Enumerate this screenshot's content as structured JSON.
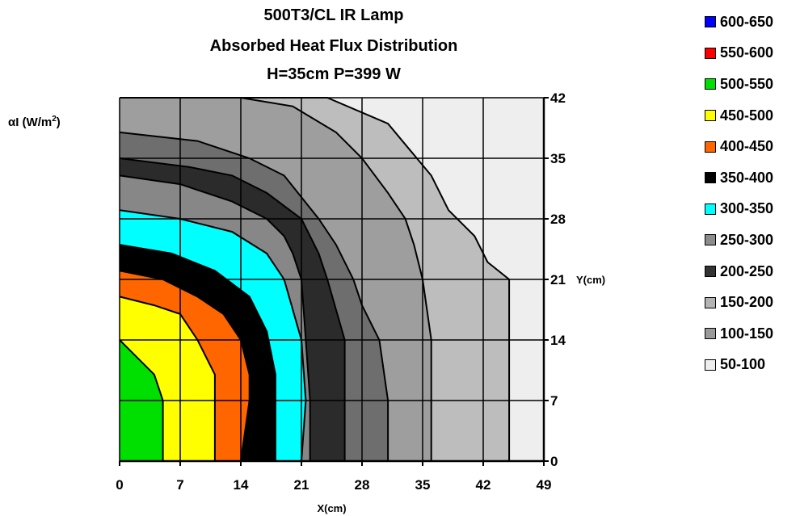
{
  "chart_data": {
    "type": "heatmap",
    "title": [
      "500T3/CL IR Lamp",
      "Absorbed Heat Flux Distribution",
      "H=35cm P=399 W"
    ],
    "xlabel": "X(cm)",
    "ylabel_prefix": "αI (W/m",
    "ylabel_sup": "2",
    "ylabel_suffix": ")",
    "right_axis_label": "Y(cm)",
    "xlim": [
      0,
      49
    ],
    "ylim": [
      0,
      42
    ],
    "x_ticks": [
      "0",
      "7",
      "14",
      "21",
      "28",
      "35",
      "42",
      "49"
    ],
    "y_ticks": [
      "0",
      "7",
      "14",
      "21",
      "28",
      "35",
      "42"
    ],
    "grid": true,
    "legend_position": "right",
    "levels": [
      {
        "label": "600-650",
        "color": "#0000ff"
      },
      {
        "label": "550-600",
        "color": "#ff0000"
      },
      {
        "label": "500-550",
        "color": "#00e000"
      },
      {
        "label": "450-500",
        "color": "#ffff00"
      },
      {
        "label": "400-450",
        "color": "#ff6600"
      },
      {
        "label": "350-400",
        "color": "#000000"
      },
      {
        "label": "300-350",
        "color": "#00ffff"
      },
      {
        "label": "250-300",
        "color": "#8c8c8c"
      },
      {
        "label": "200-250",
        "color": "#333333"
      },
      {
        "label": "150-200",
        "color": "#b4b4b4"
      },
      {
        "label": "100-150",
        "color": "#9a9a9a"
      },
      {
        "label": "50-100",
        "color": "#eeeeee"
      }
    ],
    "contours": [
      {
        "range": "50-100",
        "color": "#eeeeee",
        "boundary": null
      },
      {
        "range": "100-150",
        "color": "#bdbdbd",
        "boundary": [
          [
            0,
            42
          ],
          [
            24,
            42
          ],
          [
            31,
            39
          ],
          [
            33.5,
            36
          ],
          [
            36,
            33
          ],
          [
            38,
            29
          ],
          [
            41,
            26
          ],
          [
            42.5,
            23
          ],
          [
            45,
            21
          ],
          [
            45,
            0
          ]
        ]
      },
      {
        "range": "150-200",
        "color": "#9e9e9e",
        "boundary": [
          [
            0,
            42
          ],
          [
            14,
            42
          ],
          [
            20,
            41
          ],
          [
            25,
            38
          ],
          [
            28,
            35
          ],
          [
            31,
            31
          ],
          [
            33,
            28
          ],
          [
            34,
            25
          ],
          [
            35,
            21
          ],
          [
            36,
            14
          ],
          [
            36,
            0
          ]
        ]
      },
      {
        "range": "200-250",
        "color": "#6e6e6e",
        "boundary": [
          [
            0,
            38
          ],
          [
            9,
            37
          ],
          [
            15,
            35
          ],
          [
            19,
            33
          ],
          [
            23,
            28
          ],
          [
            25,
            25
          ],
          [
            27,
            21
          ],
          [
            28,
            18
          ],
          [
            30,
            14
          ],
          [
            31,
            7
          ],
          [
            31,
            0
          ]
        ]
      },
      {
        "range": "250-300",
        "color": "#2b2b2b",
        "boundary": [
          [
            0,
            35
          ],
          [
            8,
            34
          ],
          [
            13,
            33
          ],
          [
            17,
            31
          ],
          [
            21,
            28
          ],
          [
            23,
            24
          ],
          [
            24,
            21
          ],
          [
            26,
            14
          ],
          [
            26,
            7
          ],
          [
            26,
            0
          ]
        ]
      },
      {
        "range": "300-350",
        "color": "#878787",
        "boundary": [
          [
            0,
            33
          ],
          [
            7,
            32
          ],
          [
            13,
            30
          ],
          [
            17,
            28
          ],
          [
            19,
            26
          ],
          [
            20,
            24
          ],
          [
            21,
            21
          ],
          [
            21.5,
            14
          ],
          [
            22,
            7
          ],
          [
            22,
            0
          ]
        ]
      },
      {
        "range": "350-400",
        "color": "#00ffff",
        "boundary": [
          [
            0,
            29
          ],
          [
            7,
            28
          ],
          [
            13,
            26.5
          ],
          [
            17,
            24
          ],
          [
            19,
            21
          ],
          [
            21,
            14
          ],
          [
            21.5,
            7
          ],
          [
            21,
            0
          ]
        ]
      },
      {
        "range": "400-450",
        "color": "#000000",
        "boundary": [
          [
            0,
            25
          ],
          [
            6,
            24
          ],
          [
            11,
            22
          ],
          [
            15,
            19
          ],
          [
            17,
            15
          ],
          [
            18,
            10
          ],
          [
            18,
            7
          ],
          [
            18,
            0
          ]
        ]
      },
      {
        "range": "450-500",
        "color": "#ff6600",
        "boundary": [
          [
            0,
            22
          ],
          [
            5,
            21
          ],
          [
            9,
            19
          ],
          [
            12,
            17
          ],
          [
            14,
            14
          ],
          [
            15,
            10
          ],
          [
            15,
            7
          ],
          [
            14,
            0
          ]
        ]
      },
      {
        "range": "500-550",
        "color": "#ffff00",
        "boundary": [
          [
            0,
            19
          ],
          [
            4,
            18
          ],
          [
            7,
            17
          ],
          [
            9,
            14
          ],
          [
            11,
            10
          ],
          [
            11,
            7
          ],
          [
            11,
            0
          ]
        ]
      },
      {
        "range": "550-600",
        "color": "#00e000",
        "boundary": [
          [
            0,
            14
          ],
          [
            2,
            12
          ],
          [
            4,
            10
          ],
          [
            5,
            7
          ],
          [
            5,
            4
          ],
          [
            5,
            0
          ]
        ]
      }
    ]
  }
}
